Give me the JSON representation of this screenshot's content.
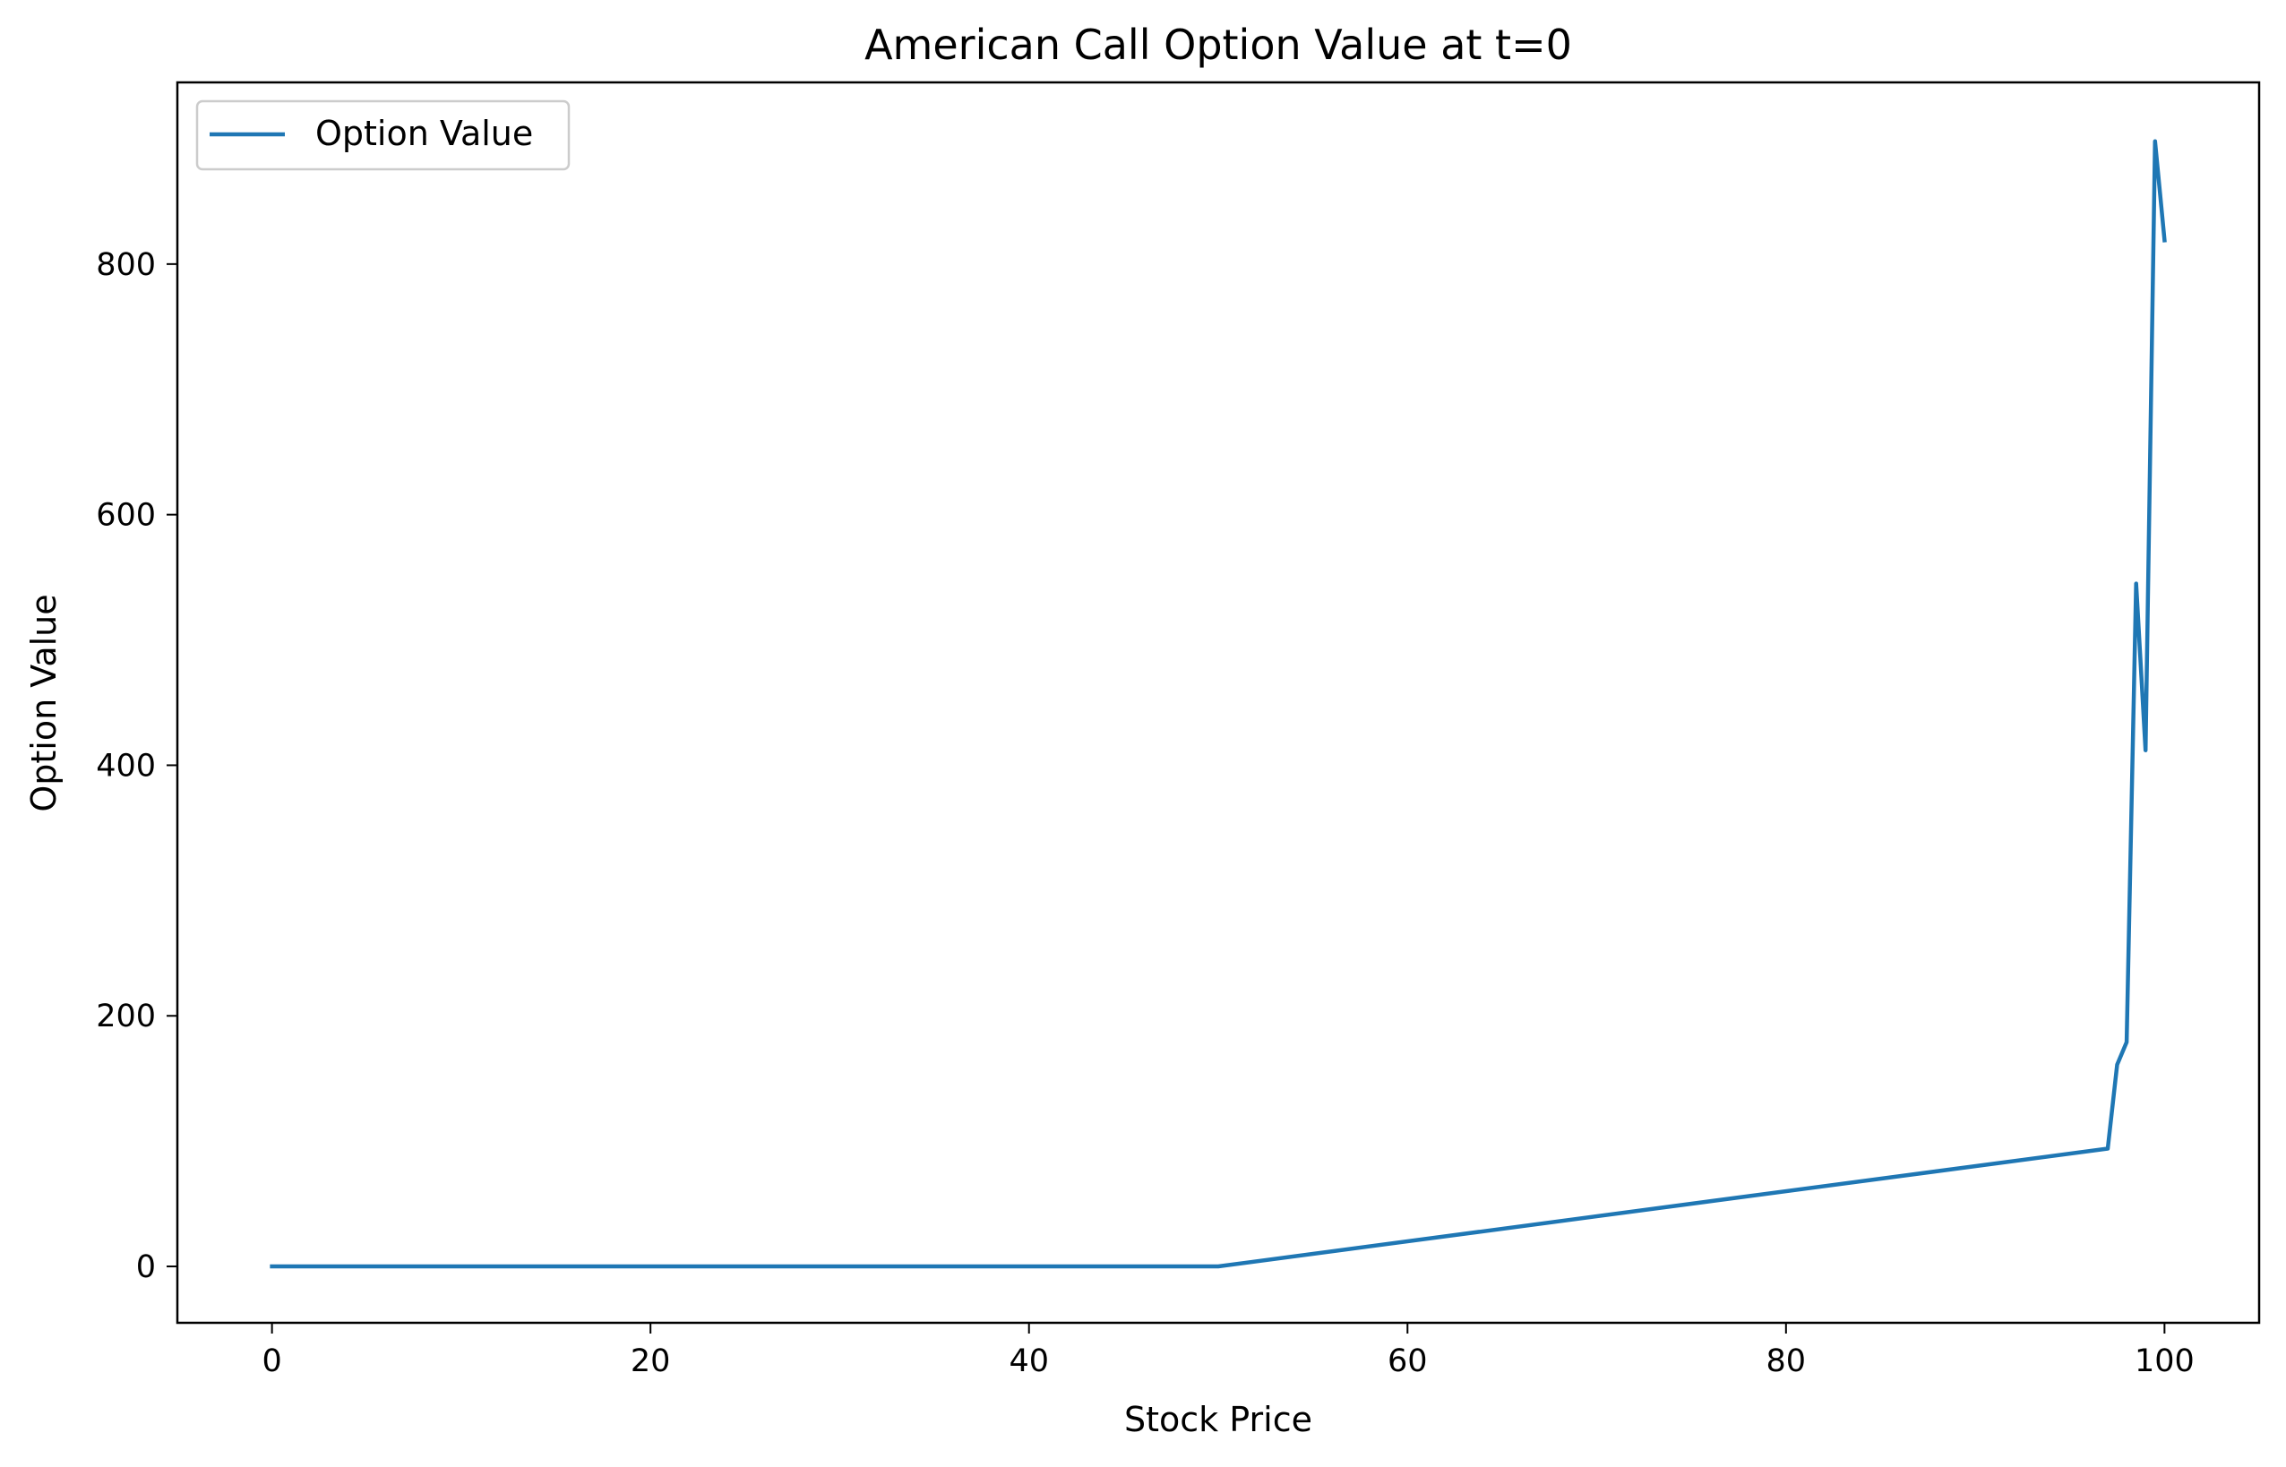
{
  "chart_data": {
    "type": "line",
    "title": "American Call Option Value at t=0",
    "xlabel": "Stock Price",
    "ylabel": "Option Value",
    "xlim": [
      -5,
      105
    ],
    "ylim": [
      -45,
      945
    ],
    "xticks": [
      0,
      20,
      40,
      60,
      80,
      100
    ],
    "yticks": [
      0,
      200,
      400,
      600,
      800
    ],
    "grid": false,
    "legend_position": "upper-left",
    "line_color": "#1f77b4",
    "series": [
      {
        "name": "Option Value",
        "x": [
          0,
          50,
          97,
          97.5,
          98,
          98.5,
          99,
          99.5,
          100
        ],
        "y": [
          0,
          0,
          94,
          161,
          179,
          545,
          412,
          898,
          819
        ]
      }
    ]
  }
}
